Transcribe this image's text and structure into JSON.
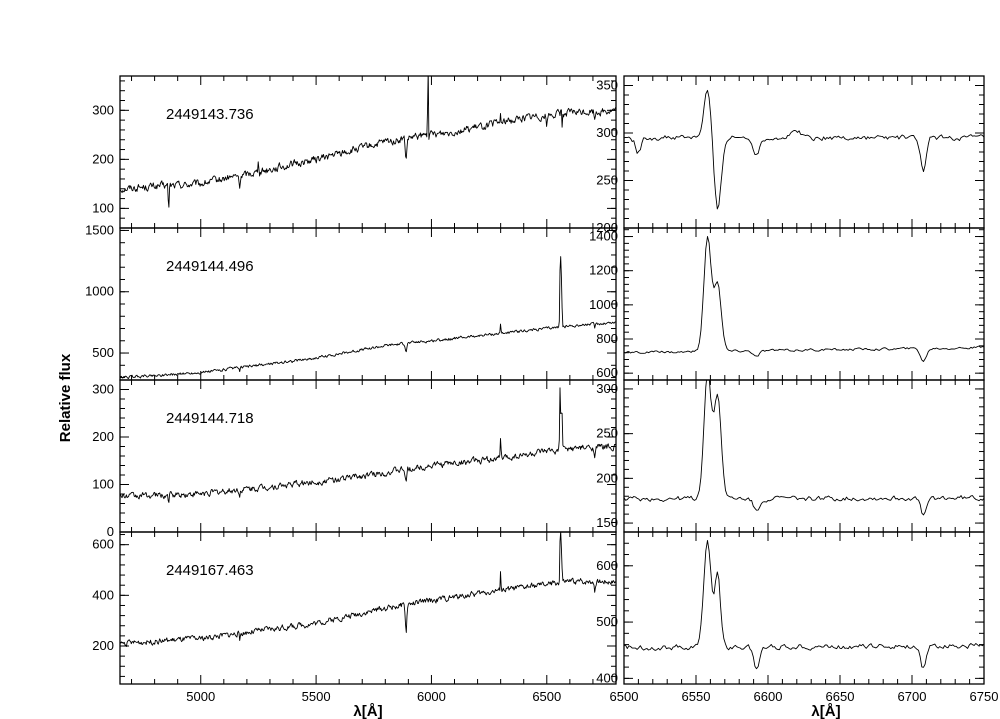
{
  "figure": {
    "ylabel": "Relative flux",
    "xlabel": "λ[Å]"
  },
  "chart_data": [
    {
      "type": "line",
      "panel": "left",
      "label": "2449143.736",
      "xlim": [
        4650,
        6800
      ],
      "ylim": [
        60,
        370
      ],
      "yticks": [
        100,
        200,
        300
      ],
      "xticks": [
        5000,
        5500,
        6000,
        6500
      ],
      "continuum": [
        [
          4650,
          140
        ],
        [
          4800,
          145
        ],
        [
          5000,
          150
        ],
        [
          5200,
          170
        ],
        [
          5500,
          200
        ],
        [
          5800,
          235
        ],
        [
          6000,
          250
        ],
        [
          6200,
          265
        ],
        [
          6400,
          285
        ],
        [
          6600,
          295
        ],
        [
          6800,
          300
        ]
      ],
      "features": [
        [
          4861,
          -50,
          2
        ],
        [
          5169,
          -30,
          2
        ],
        [
          5250,
          35,
          1.5
        ],
        [
          5890,
          -45,
          3
        ],
        [
          5985,
          210,
          1.2
        ],
        [
          6300,
          18,
          1.5
        ],
        [
          6500,
          -25,
          2
        ],
        [
          6563,
          40,
          1.5
        ],
        [
          6565,
          -55,
          1.5
        ],
        [
          6708,
          -20,
          2
        ]
      ],
      "noise": 8
    },
    {
      "type": "line",
      "panel": "right",
      "label": "2449143.736",
      "xlim": [
        6500,
        6750
      ],
      "ylim": [
        200,
        360
      ],
      "yticks": [
        200,
        250,
        300,
        350
      ],
      "xticks": [
        6500,
        6550,
        6600,
        6650,
        6700,
        6750
      ],
      "continuum": [
        [
          6500,
          295
        ],
        [
          6750,
          295
        ]
      ],
      "features": [
        [
          6510,
          -15,
          2
        ],
        [
          6558,
          50,
          2.5
        ],
        [
          6565,
          -75,
          2.5
        ],
        [
          6592,
          -18,
          2
        ],
        [
          6708,
          -35,
          2
        ],
        [
          6620,
          8,
          3
        ]
      ],
      "noise": 3
    },
    {
      "type": "line",
      "panel": "left",
      "label": "2449144.496",
      "xlim": [
        4650,
        6800
      ],
      "ylim": [
        280,
        1520
      ],
      "yticks": [
        500,
        1000,
        1500
      ],
      "xticks": [
        5000,
        5500,
        6000,
        6500
      ],
      "continuum": [
        [
          4650,
          300
        ],
        [
          5000,
          340
        ],
        [
          5500,
          460
        ],
        [
          5800,
          560
        ],
        [
          6000,
          600
        ],
        [
          6300,
          660
        ],
        [
          6600,
          720
        ],
        [
          6800,
          750
        ]
      ],
      "features": [
        [
          5169,
          -40,
          2
        ],
        [
          5890,
          -60,
          3
        ],
        [
          6300,
          80,
          1.5
        ],
        [
          6559,
          650,
          2
        ],
        [
          6564,
          380,
          2
        ],
        [
          6708,
          -30,
          2
        ]
      ],
      "noise": 12
    },
    {
      "type": "line",
      "panel": "right",
      "label": "2449144.496",
      "xlim": [
        6500,
        6750
      ],
      "ylim": [
        560,
        1450
      ],
      "yticks": [
        600,
        800,
        1000,
        1200,
        1400
      ],
      "xticks": [
        6500,
        6550,
        6600,
        6650,
        6700,
        6750
      ],
      "continuum": [
        [
          6500,
          720
        ],
        [
          6750,
          750
        ]
      ],
      "features": [
        [
          6558,
          670,
          2.5
        ],
        [
          6565,
          400,
          2.5
        ],
        [
          6592,
          -35,
          2
        ],
        [
          6708,
          -75,
          2
        ]
      ],
      "noise": 8
    },
    {
      "type": "line",
      "panel": "left",
      "label": "2449144.718",
      "xlim": [
        4650,
        6800
      ],
      "ylim": [
        0,
        320
      ],
      "yticks": [
        0,
        100,
        200,
        300
      ],
      "xticks": [
        5000,
        5500,
        6000,
        6500
      ],
      "continuum": [
        [
          4650,
          75
        ],
        [
          5000,
          80
        ],
        [
          5500,
          105
        ],
        [
          5800,
          125
        ],
        [
          6000,
          140
        ],
        [
          6300,
          155
        ],
        [
          6600,
          175
        ],
        [
          6800,
          180
        ]
      ],
      "features": [
        [
          4861,
          -15,
          2
        ],
        [
          5169,
          -15,
          2
        ],
        [
          5890,
          -30,
          3
        ],
        [
          6300,
          45,
          1.5
        ],
        [
          6558,
          140,
          2
        ],
        [
          6565,
          100,
          2
        ],
        [
          6708,
          -15,
          2
        ]
      ],
      "noise": 7
    },
    {
      "type": "line",
      "panel": "right",
      "label": "2449144.718",
      "xlim": [
        6500,
        6750
      ],
      "ylim": [
        140,
        310
      ],
      "yticks": [
        150,
        200,
        250,
        300
      ],
      "xticks": [
        6500,
        6550,
        6600,
        6650,
        6700,
        6750
      ],
      "continuum": [
        [
          6500,
          177
        ],
        [
          6750,
          178
        ]
      ],
      "features": [
        [
          6558,
          140,
          2.5
        ],
        [
          6565,
          115,
          2.5
        ],
        [
          6592,
          -15,
          2
        ],
        [
          6708,
          -20,
          2
        ]
      ],
      "noise": 3
    },
    {
      "type": "line",
      "panel": "left",
      "label": "2449167.463",
      "xlim": [
        4650,
        6800
      ],
      "ylim": [
        50,
        650
      ],
      "yticks": [
        200,
        400,
        600
      ],
      "xticks": [
        5000,
        5500,
        6000,
        6500
      ],
      "xticklabels": [
        "5000",
        "5500",
        "6000",
        "6500"
      ],
      "continuum": [
        [
          4650,
          210
        ],
        [
          5000,
          230
        ],
        [
          5500,
          290
        ],
        [
          5800,
          350
        ],
        [
          6000,
          380
        ],
        [
          6300,
          420
        ],
        [
          6600,
          455
        ],
        [
          6800,
          455
        ]
      ],
      "features": [
        [
          5169,
          -35,
          2
        ],
        [
          5890,
          -110,
          3
        ],
        [
          6300,
          90,
          1.5
        ],
        [
          6559,
          230,
          2
        ],
        [
          6564,
          120,
          2
        ],
        [
          6708,
          -40,
          2
        ]
      ],
      "noise": 12
    },
    {
      "type": "line",
      "panel": "right",
      "label": "2449167.463",
      "xlim": [
        6500,
        6750
      ],
      "ylim": [
        390,
        660
      ],
      "yticks": [
        400,
        500,
        600
      ],
      "xticks": [
        6500,
        6550,
        6600,
        6650,
        6700,
        6750
      ],
      "xticklabels": [
        "6500",
        "6550",
        "6600",
        "6650",
        "6700",
        "6750"
      ],
      "continuum": [
        [
          6500,
          455
        ],
        [
          6750,
          458
        ]
      ],
      "features": [
        [
          6558,
          190,
          2.5
        ],
        [
          6565,
          130,
          2
        ],
        [
          6592,
          -40,
          2
        ],
        [
          6708,
          -40,
          2
        ]
      ],
      "noise": 5
    }
  ]
}
